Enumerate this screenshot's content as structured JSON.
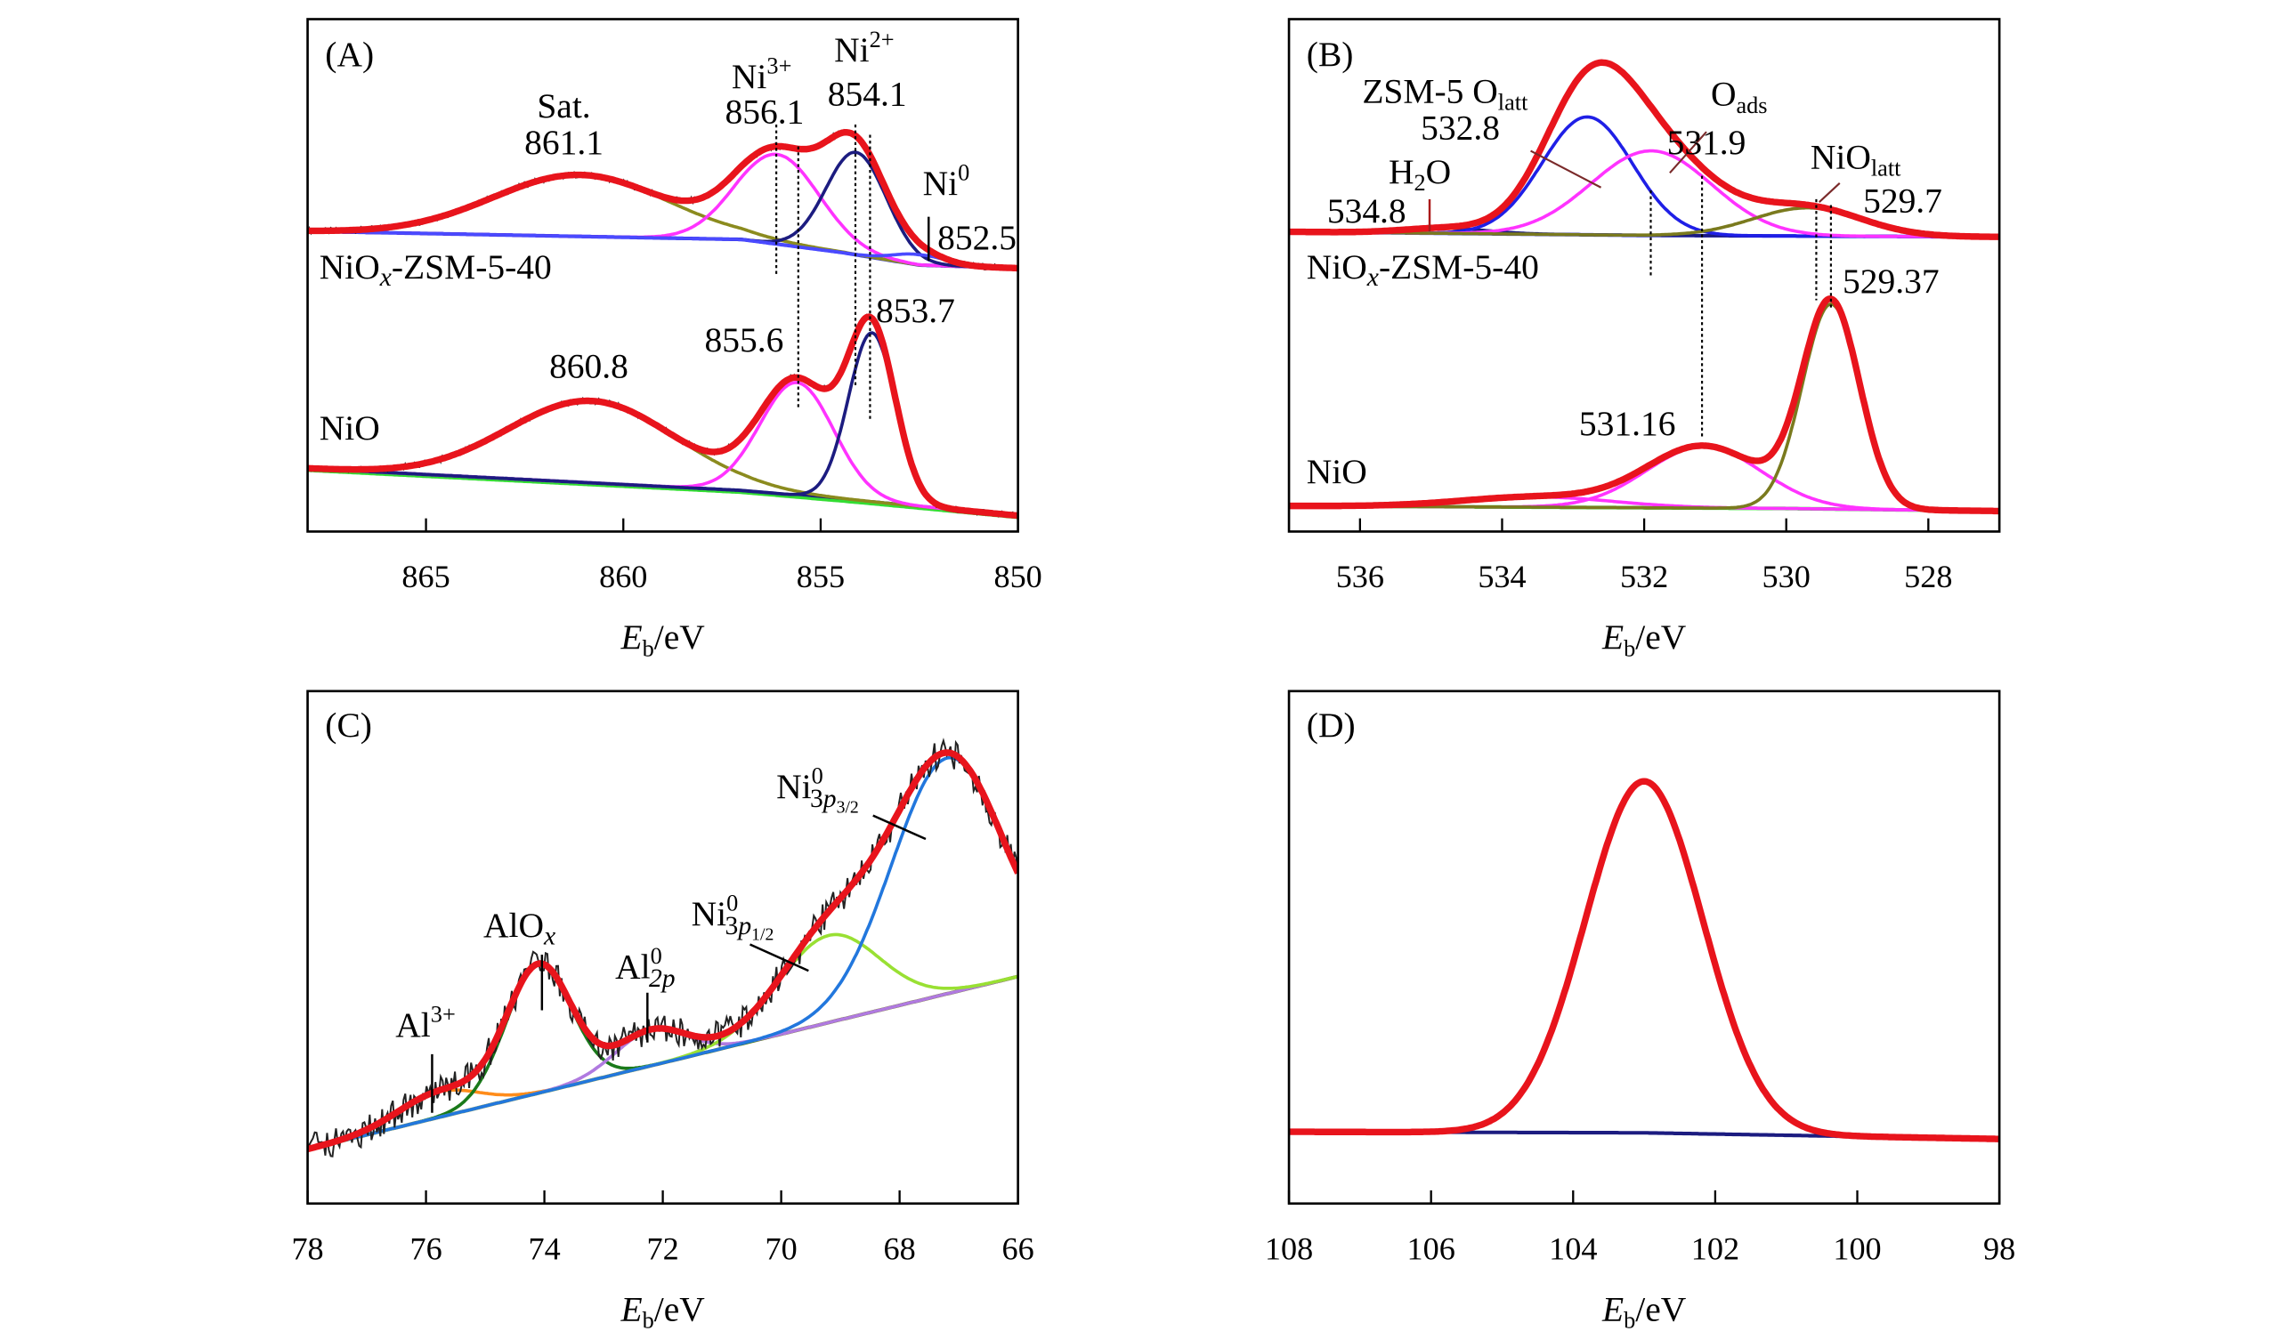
{
  "chart_data": [
    {
      "type": "line",
      "panel": "(A)",
      "xlabel": {
        "main": "E",
        "sub": "b",
        "unit": "/eV"
      },
      "xlim": [
        868,
        850
      ],
      "ylim": [
        0,
        1
      ],
      "xticks": [
        865,
        860,
        855,
        850
      ],
      "reversed_x": true,
      "grid": false,
      "spectra": [
        {
          "sample": "NiOx-ZSM-5-40",
          "baseline": [
            [
              868,
              0.586
            ],
            [
              857,
              0.57
            ],
            [
              854.5,
              0.545
            ],
            [
              852.5,
              0.52
            ],
            [
              850,
              0.514
            ]
          ],
          "background_color": "#2b2bff",
          "components": [
            {
              "label": "Sat.",
              "center": 861.1,
              "amplitude": 0.12,
              "fwhm": 5.2,
              "color": "#8b8b1e"
            },
            {
              "label": "Ni3+",
              "center": 856.1,
              "amplitude": 0.175,
              "fwhm": 2.5,
              "color": "#ff33ff"
            },
            {
              "label": "Ni2+",
              "center": 854.1,
              "amplitude": 0.2,
              "fwhm": 1.8,
              "color": "#1c1c80"
            },
            {
              "label": "Ni0",
              "center": 852.5,
              "amplitude": 0.02,
              "fwhm": 1.5,
              "color": "#4a4aff"
            }
          ]
        },
        {
          "sample": "NiO",
          "baseline": [
            [
              868,
              0.123
            ],
            [
              857,
              0.08
            ],
            [
              854,
              0.06
            ],
            [
              850,
              0.031
            ]
          ],
          "background_color": "#1c1c80",
          "components": [
            {
              "label": "Sat.",
              "center": 860.8,
              "amplitude": 0.16,
              "fwhm": 5.0,
              "color": "#8b8b1e"
            },
            {
              "label": "Ni3+",
              "center": 855.6,
              "amplitude": 0.22,
              "fwhm": 2.2,
              "color": "#ff33ff"
            },
            {
              "label": "Ni2+",
              "center": 853.7,
              "amplitude": 0.33,
              "fwhm": 1.4,
              "color": "#1c1c80"
            }
          ]
        }
      ],
      "annotations": [
        {
          "parts": [
            {
              "t": "(A)",
              "s": ""
            }
          ]
        },
        {
          "parts": [
            {
              "t": "Sat.",
              "s": ""
            }
          ]
        },
        {
          "parts": [
            {
              "t": "861.1",
              "s": ""
            }
          ]
        },
        {
          "parts": [
            {
              "t": "Ni",
              "s": ""
            },
            {
              "t": "3+",
              "s": "sup"
            }
          ]
        },
        {
          "parts": [
            {
              "t": "856.1",
              "s": ""
            }
          ]
        },
        {
          "parts": [
            {
              "t": "Ni",
              "s": ""
            },
            {
              "t": "2+",
              "s": "sup"
            }
          ]
        },
        {
          "parts": [
            {
              "t": "854.1",
              "s": ""
            }
          ]
        },
        {
          "parts": [
            {
              "t": "Ni",
              "s": ""
            },
            {
              "t": "0",
              "s": "sup"
            }
          ]
        },
        {
          "parts": [
            {
              "t": "852.5",
              "s": ""
            }
          ]
        },
        {
          "parts": [
            {
              "t": "NiO",
              "s": ""
            },
            {
              "t": "x",
              "s": "subi"
            },
            {
              "t": "-ZSM-5-40",
              "s": "back"
            }
          ]
        },
        {
          "parts": [
            {
              "t": "860.8",
              "s": ""
            }
          ]
        },
        {
          "parts": [
            {
              "t": "855.6",
              "s": ""
            }
          ]
        },
        {
          "parts": [
            {
              "t": "853.7",
              "s": ""
            }
          ]
        },
        {
          "parts": [
            {
              "t": "NiO",
              "s": ""
            }
          ]
        }
      ]
    },
    {
      "type": "line",
      "panel": "(B)",
      "xlabel": {
        "main": "E",
        "sub": "b",
        "unit": "/eV"
      },
      "xlim": [
        537,
        527
      ],
      "ylim": [
        0,
        1
      ],
      "xticks": [
        536,
        534,
        532,
        530,
        528
      ],
      "reversed_x": true,
      "grid": false,
      "spectra": [
        {
          "sample": "NiOx-ZSM-5-40",
          "baseline": [
            [
              537,
              0.585
            ],
            [
              532,
              0.578
            ],
            [
              527,
              0.575
            ]
          ],
          "background_color": "#2b2bff",
          "components": [
            {
              "label": "H2O",
              "center": 534.8,
              "amplitude": 0.01,
              "fwhm": 1.4,
              "color": "#1c1c80"
            },
            {
              "label": "ZSM-5 Olatt",
              "center": 532.8,
              "amplitude": 0.23,
              "fwhm": 1.5,
              "color": "#1f1fe6"
            },
            {
              "label": "Oads",
              "center": 531.9,
              "amplitude": 0.165,
              "fwhm": 2.0,
              "color": "#ff33ff"
            },
            {
              "label": "NiOlatt",
              "center": 529.7,
              "amplitude": 0.055,
              "fwhm": 1.8,
              "color": "#7a7a1e"
            }
          ]
        },
        {
          "sample": "NiO",
          "baseline": [
            [
              537,
              0.05
            ],
            [
              530,
              0.045
            ],
            [
              527,
              0.04
            ]
          ],
          "background_color": "#33dd33",
          "components": [
            {
              "label": "",
              "center": 531.16,
              "amplitude": 0.12,
              "fwhm": 1.9,
              "color": "#ff33ff"
            },
            {
              "label": "",
              "center": 533.5,
              "amplitude": 0.02,
              "fwhm": 2.5,
              "color": "#ff33ff"
            },
            {
              "label": "",
              "center": 529.37,
              "amplitude": 0.4,
              "fwhm": 0.95,
              "color": "#7a7a1e"
            }
          ]
        }
      ],
      "annotations": [
        {
          "parts": [
            {
              "t": "(B)",
              "s": ""
            }
          ]
        },
        {
          "parts": [
            {
              "t": "ZSM-5 O",
              "s": ""
            },
            {
              "t": "latt",
              "s": "sub"
            }
          ]
        },
        {
          "parts": [
            {
              "t": "532.8",
              "s": ""
            }
          ]
        },
        {
          "parts": [
            {
              "t": "H",
              "s": ""
            },
            {
              "t": "2",
              "s": "sub"
            },
            {
              "t": "O",
              "s": "back"
            }
          ]
        },
        {
          "parts": [
            {
              "t": "534.8",
              "s": ""
            }
          ]
        },
        {
          "parts": [
            {
              "t": "O",
              "s": ""
            },
            {
              "t": "ads",
              "s": "sub"
            }
          ]
        },
        {
          "parts": [
            {
              "t": "531.9",
              "s": ""
            }
          ]
        },
        {
          "parts": [
            {
              "t": "NiO",
              "s": ""
            },
            {
              "t": "latt",
              "s": "sub"
            }
          ]
        },
        {
          "parts": [
            {
              "t": "529.7",
              "s": ""
            }
          ]
        },
        {
          "parts": [
            {
              "t": "NiO",
              "s": ""
            },
            {
              "t": "x",
              "s": "subi"
            },
            {
              "t": "-ZSM-5-40",
              "s": "back"
            }
          ]
        },
        {
          "parts": [
            {
              "t": "529.37",
              "s": ""
            }
          ]
        },
        {
          "parts": [
            {
              "t": "531.16",
              "s": ""
            }
          ]
        },
        {
          "parts": [
            {
              "t": "NiO",
              "s": ""
            }
          ]
        }
      ]
    },
    {
      "type": "line",
      "panel": "(C)",
      "xlabel": {
        "main": "E",
        "sub": "b",
        "unit": "/eV"
      },
      "xlim": [
        78,
        66
      ],
      "ylim": [
        0,
        1
      ],
      "xticks": [
        78,
        76,
        74,
        72,
        70,
        68,
        66
      ],
      "reversed_x": true,
      "grid": false,
      "spectra": [
        {
          "sample": "",
          "baseline": [
            [
              78,
              0.106
            ],
            [
              66,
              0.443
            ]
          ],
          "background_color": "#7a7a1e",
          "components": [
            {
              "label": "Al3+",
              "center": 75.8,
              "amplitude": 0.05,
              "fwhm": 1.6,
              "color": "#ff8c1a"
            },
            {
              "label": "AlOx",
              "center": 74.1,
              "amplitude": 0.25,
              "fwhm": 1.3,
              "color": "#1a7a1a"
            },
            {
              "label": "Al0 2p",
              "center": 72.2,
              "amplitude": 0.07,
              "fwhm": 1.4,
              "color": "#b07ae0"
            },
            {
              "label": "Ni0 3p1/2",
              "center": 69.2,
              "amplitude": 0.17,
              "fwhm": 2.0,
              "color": "#99e033"
            },
            {
              "label": "Ni0 3p3/2",
              "center": 67.2,
              "amplitude": 0.46,
              "fwhm": 2.2,
              "color": "#2277dd"
            }
          ]
        }
      ],
      "annotations": [
        {
          "parts": [
            {
              "t": "(C)",
              "s": ""
            }
          ]
        },
        {
          "parts": [
            {
              "t": "Al",
              "s": ""
            },
            {
              "t": "3+",
              "s": "sup"
            }
          ]
        },
        {
          "parts": [
            {
              "t": "AlO",
              "s": ""
            },
            {
              "t": "x",
              "s": "subi"
            }
          ]
        },
        {
          "parts": [
            {
              "t": "Al",
              "s": ""
            },
            {
              "t": "0",
              "s": "sup"
            },
            {
              "t": "2p",
              "s": "stacki"
            }
          ]
        },
        {
          "parts": [
            {
              "t": "Ni",
              "s": ""
            },
            {
              "t": "0",
              "s": "sup"
            },
            {
              "t": "3",
              "s": "stack"
            },
            {
              "t": "p",
              "s": "i"
            },
            {
              "t": "1/2",
              "s": "subsub"
            }
          ]
        },
        {
          "parts": [
            {
              "t": "Ni",
              "s": ""
            },
            {
              "t": "0",
              "s": "sup"
            },
            {
              "t": "3",
              "s": "stack"
            },
            {
              "t": "p",
              "s": "i"
            },
            {
              "t": "3/2",
              "s": "subsub"
            }
          ]
        }
      ]
    },
    {
      "type": "line",
      "panel": "(D)",
      "xlabel": {
        "main": "E",
        "sub": "b",
        "unit": "/eV"
      },
      "xlim": [
        108,
        98
      ],
      "ylim": [
        0,
        1
      ],
      "xticks": [
        108,
        106,
        104,
        102,
        100,
        98
      ],
      "reversed_x": true,
      "grid": false,
      "spectra": [
        {
          "sample": "",
          "baseline": [
            [
              108,
              0.14
            ],
            [
              103,
              0.138
            ],
            [
              98,
              0.126
            ]
          ],
          "background_color": "#1c1c80",
          "components": [
            {
              "label": "",
              "center": 103.0,
              "amplitude": 0.686,
              "fwhm": 1.95,
              "color": "#e8141c"
            }
          ]
        }
      ],
      "annotations": [
        {
          "parts": [
            {
              "t": "(D)",
              "s": ""
            }
          ]
        }
      ]
    }
  ],
  "colors": {
    "fit": "#e8141c",
    "raw": "#222222",
    "axis": "#000000",
    "annotation_leader_b": "#7a2a2a"
  }
}
